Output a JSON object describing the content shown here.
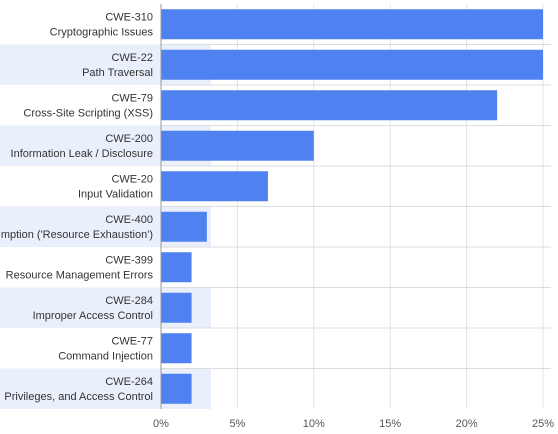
{
  "chart_data": {
    "type": "bar",
    "orientation": "horizontal",
    "categories": [
      {
        "id": "CWE-310",
        "name": "Cryptographic Issues"
      },
      {
        "id": "CWE-22",
        "name": "Path Traversal"
      },
      {
        "id": "CWE-79",
        "name": "Cross-Site Scripting (XSS)"
      },
      {
        "id": "CWE-200",
        "name": "Information Leak / Disclosure"
      },
      {
        "id": "CWE-20",
        "name": "Input Validation"
      },
      {
        "id": "CWE-400",
        "name": "mption ('Resource Exhaustion')"
      },
      {
        "id": "CWE-399",
        "name": "Resource Management Errors"
      },
      {
        "id": "CWE-284",
        "name": "Improper Access Control"
      },
      {
        "id": "CWE-77",
        "name": "Command Injection"
      },
      {
        "id": "CWE-264",
        "name": "Privileges, and Access Control"
      }
    ],
    "values": [
      25,
      25,
      22,
      10,
      7,
      3,
      2,
      2,
      2,
      2
    ],
    "xlim": [
      0,
      25
    ],
    "ticks": [
      0,
      5,
      10,
      15,
      20,
      25
    ],
    "tick_labels": [
      "0%",
      "5%",
      "10%",
      "15%",
      "20%",
      "25%"
    ],
    "title": "",
    "xlabel": "",
    "ylabel": "",
    "grid": true,
    "colors": {
      "bar": "#4f81f0",
      "stripe": "#eaf0fb",
      "grid": "#e4e4e4",
      "axis": "#9a9a9a",
      "separator": "#dddddd"
    }
  }
}
